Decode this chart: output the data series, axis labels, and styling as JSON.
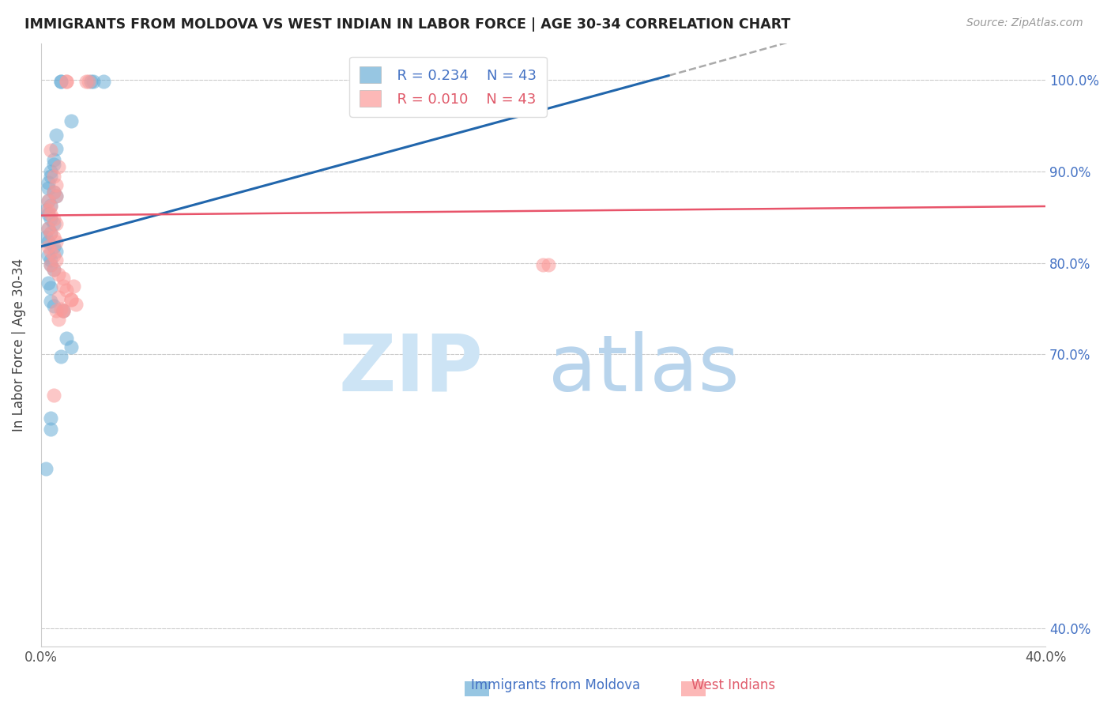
{
  "title": "IMMIGRANTS FROM MOLDOVA VS WEST INDIAN IN LABOR FORCE | AGE 30-34 CORRELATION CHART",
  "source": "Source: ZipAtlas.com",
  "ylabel": "In Labor Force | Age 30-34",
  "yaxis_labels": [
    "100.0%",
    "90.0%",
    "80.0%",
    "70.0%",
    "40.0%"
  ],
  "yaxis_ticks": [
    1.0,
    0.9,
    0.8,
    0.7,
    0.4
  ],
  "xlim": [
    0.0,
    0.4
  ],
  "ylim": [
    0.38,
    1.04
  ],
  "legend_r_moldova": "R = 0.234",
  "legend_n_moldova": "N = 43",
  "legend_r_westindian": "R = 0.010",
  "legend_n_westindian": "N = 43",
  "moldova_color": "#6baed6",
  "westindian_color": "#fb9a99",
  "moldova_line_color": "#2166ac",
  "westindian_line_color": "#e8546a",
  "moldova_line": [
    [
      0.0,
      0.818
    ],
    [
      0.25,
      1.005
    ]
  ],
  "moldova_line_dashed": [
    [
      0.25,
      1.005
    ],
    [
      0.4,
      1.12
    ]
  ],
  "westindian_line": [
    [
      0.0,
      0.852
    ],
    [
      0.4,
      0.862
    ]
  ],
  "grid_color": "#cccccc",
  "moldova_scatter": [
    [
      0.008,
      0.999
    ],
    [
      0.008,
      0.999
    ],
    [
      0.02,
      0.999
    ],
    [
      0.021,
      0.999
    ],
    [
      0.025,
      0.999
    ],
    [
      0.012,
      0.955
    ],
    [
      0.006,
      0.94
    ],
    [
      0.006,
      0.925
    ],
    [
      0.005,
      0.913
    ],
    [
      0.005,
      0.908
    ],
    [
      0.004,
      0.9
    ],
    [
      0.004,
      0.895
    ],
    [
      0.003,
      0.888
    ],
    [
      0.003,
      0.882
    ],
    [
      0.005,
      0.878
    ],
    [
      0.006,
      0.873
    ],
    [
      0.003,
      0.868
    ],
    [
      0.004,
      0.863
    ],
    [
      0.002,
      0.858
    ],
    [
      0.003,
      0.853
    ],
    [
      0.004,
      0.848
    ],
    [
      0.005,
      0.843
    ],
    [
      0.003,
      0.838
    ],
    [
      0.004,
      0.833
    ],
    [
      0.002,
      0.828
    ],
    [
      0.003,
      0.823
    ],
    [
      0.005,
      0.818
    ],
    [
      0.006,
      0.813
    ],
    [
      0.003,
      0.808
    ],
    [
      0.004,
      0.803
    ],
    [
      0.004,
      0.798
    ],
    [
      0.005,
      0.793
    ],
    [
      0.003,
      0.778
    ],
    [
      0.004,
      0.773
    ],
    [
      0.004,
      0.758
    ],
    [
      0.005,
      0.753
    ],
    [
      0.009,
      0.748
    ],
    [
      0.01,
      0.718
    ],
    [
      0.012,
      0.708
    ],
    [
      0.008,
      0.698
    ],
    [
      0.004,
      0.63
    ],
    [
      0.004,
      0.618
    ],
    [
      0.002,
      0.575
    ]
  ],
  "westindian_scatter": [
    [
      0.01,
      0.999
    ],
    [
      0.01,
      0.999
    ],
    [
      0.018,
      0.999
    ],
    [
      0.019,
      0.999
    ],
    [
      0.004,
      0.923
    ],
    [
      0.007,
      0.905
    ],
    [
      0.005,
      0.895
    ],
    [
      0.006,
      0.885
    ],
    [
      0.005,
      0.878
    ],
    [
      0.006,
      0.873
    ],
    [
      0.003,
      0.868
    ],
    [
      0.004,
      0.862
    ],
    [
      0.003,
      0.858
    ],
    [
      0.004,
      0.853
    ],
    [
      0.005,
      0.848
    ],
    [
      0.006,
      0.843
    ],
    [
      0.003,
      0.838
    ],
    [
      0.004,
      0.833
    ],
    [
      0.005,
      0.828
    ],
    [
      0.006,
      0.823
    ],
    [
      0.003,
      0.818
    ],
    [
      0.004,
      0.813
    ],
    [
      0.005,
      0.808
    ],
    [
      0.006,
      0.803
    ],
    [
      0.004,
      0.798
    ],
    [
      0.005,
      0.793
    ],
    [
      0.007,
      0.788
    ],
    [
      0.009,
      0.783
    ],
    [
      0.013,
      0.775
    ],
    [
      0.012,
      0.76
    ],
    [
      0.014,
      0.755
    ],
    [
      0.009,
      0.748
    ],
    [
      0.009,
      0.775
    ],
    [
      0.01,
      0.77
    ],
    [
      0.007,
      0.763
    ],
    [
      0.008,
      0.75
    ],
    [
      0.009,
      0.748
    ],
    [
      0.012,
      0.76
    ],
    [
      0.005,
      0.655
    ],
    [
      0.2,
      0.798
    ],
    [
      0.202,
      0.798
    ],
    [
      0.006,
      0.748
    ],
    [
      0.007,
      0.738
    ]
  ]
}
